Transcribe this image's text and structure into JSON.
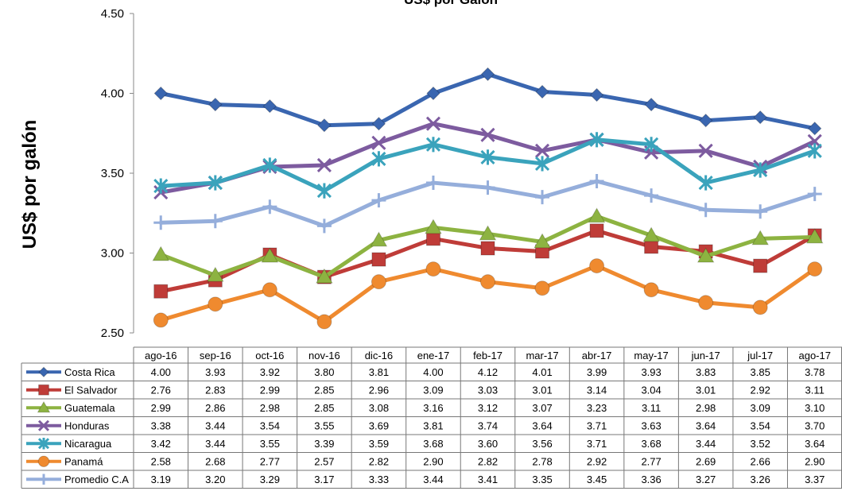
{
  "chart_data": {
    "type": "line",
    "title": "US$ por Galón",
    "ylabel": "US$ por galón",
    "ylim": [
      2.5,
      4.5
    ],
    "yticks": [
      "2.50",
      "3.00",
      "3.50",
      "4.00",
      "4.50"
    ],
    "categories": [
      "ago-16",
      "sep-16",
      "oct-16",
      "nov-16",
      "dic-16",
      "ene-17",
      "feb-17",
      "mar-17",
      "abr-17",
      "may-17",
      "jun-17",
      "jul-17",
      "ago-17"
    ],
    "series": [
      {
        "name": "Costa Rica",
        "color": "#3a66b0",
        "marker": "diamond",
        "values": [
          "4.00",
          "3.93",
          "3.92",
          "3.80",
          "3.81",
          "4.00",
          "4.12",
          "4.01",
          "3.99",
          "3.93",
          "3.83",
          "3.85",
          "3.78"
        ]
      },
      {
        "name": "El Salvador",
        "color": "#bf3c38",
        "marker": "square",
        "values": [
          "2.76",
          "2.83",
          "2.99",
          "2.85",
          "2.96",
          "3.09",
          "3.03",
          "3.01",
          "3.14",
          "3.04",
          "3.01",
          "2.92",
          "3.11"
        ]
      },
      {
        "name": "Guatemala",
        "color": "#8db341",
        "marker": "triangle",
        "values": [
          "2.99",
          "2.86",
          "2.98",
          "2.85",
          "3.08",
          "3.16",
          "3.12",
          "3.07",
          "3.23",
          "3.11",
          "2.98",
          "3.09",
          "3.10"
        ]
      },
      {
        "name": "Honduras",
        "color": "#7d5b9f",
        "marker": "x",
        "values": [
          "3.38",
          "3.44",
          "3.54",
          "3.55",
          "3.69",
          "3.81",
          "3.74",
          "3.64",
          "3.71",
          "3.63",
          "3.64",
          "3.54",
          "3.70"
        ]
      },
      {
        "name": "Nicaragua",
        "color": "#3aa3bc",
        "marker": "star",
        "values": [
          "3.42",
          "3.44",
          "3.55",
          "3.39",
          "3.59",
          "3.68",
          "3.60",
          "3.56",
          "3.71",
          "3.68",
          "3.44",
          "3.52",
          "3.64"
        ]
      },
      {
        "name": "Panamá",
        "color": "#ef8a2f",
        "marker": "circle",
        "values": [
          "2.58",
          "2.68",
          "2.77",
          "2.57",
          "2.82",
          "2.90",
          "2.82",
          "2.78",
          "2.92",
          "2.77",
          "2.69",
          "2.66",
          "2.90"
        ]
      },
      {
        "name": "Promedio C.A",
        "color": "#95aedb",
        "marker": "plus",
        "values": [
          "3.19",
          "3.20",
          "3.29",
          "3.17",
          "3.33",
          "3.44",
          "3.41",
          "3.35",
          "3.45",
          "3.36",
          "3.27",
          "3.26",
          "3.37"
        ]
      }
    ],
    "grid": false,
    "legend": "data-table"
  }
}
